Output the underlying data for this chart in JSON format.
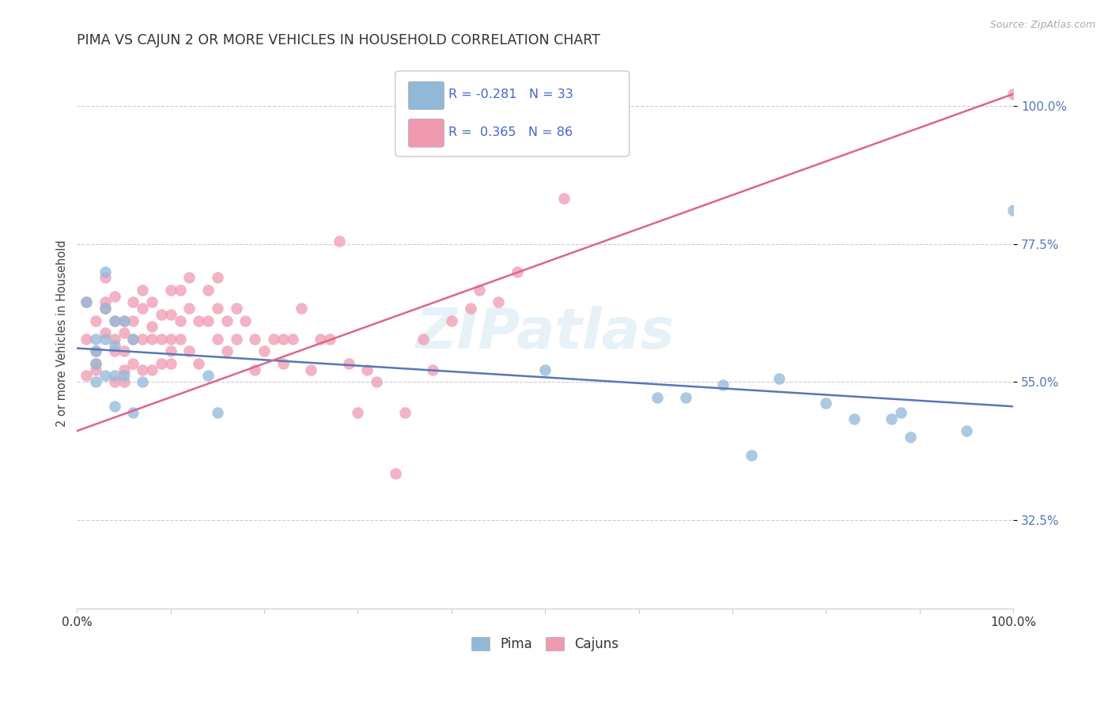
{
  "title": "PIMA VS CAJUN 2 OR MORE VEHICLES IN HOUSEHOLD CORRELATION CHART",
  "source": "Source: ZipAtlas.com",
  "ylabel": "2 or more Vehicles in Household",
  "ytick_labels": [
    "32.5%",
    "55.0%",
    "77.5%",
    "100.0%"
  ],
  "ytick_values": [
    0.325,
    0.55,
    0.775,
    1.0
  ],
  "xlim": [
    0.0,
    1.0
  ],
  "ylim": [
    0.18,
    1.08
  ],
  "pima_color": "#92b8d8",
  "cajun_color": "#f09ab0",
  "pima_line_color": "#5577bb",
  "cajun_line_color": "#dd6688",
  "ytick_color": "#5577bb",
  "watermark": "ZIPatlas",
  "pima_R": -0.281,
  "pima_N": 33,
  "cajun_R": 0.365,
  "cajun_N": 86,
  "grid_color": "#cccccc",
  "background_color": "#ffffff",
  "pima_scatter_x": [
    0.01,
    0.02,
    0.02,
    0.02,
    0.02,
    0.03,
    0.03,
    0.03,
    0.03,
    0.04,
    0.04,
    0.04,
    0.04,
    0.05,
    0.05,
    0.06,
    0.06,
    0.07,
    0.14,
    0.15,
    0.5,
    0.62,
    0.65,
    0.69,
    0.72,
    0.75,
    0.8,
    0.83,
    0.87,
    0.88,
    0.89,
    0.95,
    1.0
  ],
  "pima_scatter_y": [
    0.68,
    0.62,
    0.6,
    0.58,
    0.55,
    0.73,
    0.67,
    0.62,
    0.56,
    0.65,
    0.61,
    0.56,
    0.51,
    0.65,
    0.56,
    0.62,
    0.5,
    0.55,
    0.56,
    0.5,
    0.57,
    0.525,
    0.525,
    0.545,
    0.43,
    0.555,
    0.515,
    0.49,
    0.49,
    0.5,
    0.46,
    0.47,
    0.83
  ],
  "cajun_scatter_x": [
    0.01,
    0.01,
    0.01,
    0.02,
    0.02,
    0.02,
    0.02,
    0.03,
    0.03,
    0.03,
    0.03,
    0.04,
    0.04,
    0.04,
    0.04,
    0.04,
    0.05,
    0.05,
    0.05,
    0.05,
    0.05,
    0.06,
    0.06,
    0.06,
    0.06,
    0.07,
    0.07,
    0.07,
    0.07,
    0.08,
    0.08,
    0.08,
    0.08,
    0.09,
    0.09,
    0.09,
    0.1,
    0.1,
    0.1,
    0.1,
    0.1,
    0.11,
    0.11,
    0.11,
    0.12,
    0.12,
    0.12,
    0.13,
    0.13,
    0.14,
    0.14,
    0.15,
    0.15,
    0.15,
    0.16,
    0.16,
    0.17,
    0.17,
    0.18,
    0.19,
    0.19,
    0.2,
    0.21,
    0.22,
    0.22,
    0.23,
    0.24,
    0.25,
    0.26,
    0.27,
    0.28,
    0.29,
    0.3,
    0.31,
    0.32,
    0.34,
    0.35,
    0.37,
    0.38,
    0.4,
    0.42,
    0.43,
    0.45,
    0.47,
    0.52,
    1.0
  ],
  "cajun_scatter_y": [
    0.62,
    0.68,
    0.56,
    0.58,
    0.65,
    0.6,
    0.57,
    0.63,
    0.68,
    0.72,
    0.67,
    0.6,
    0.65,
    0.69,
    0.62,
    0.55,
    0.65,
    0.6,
    0.63,
    0.57,
    0.55,
    0.62,
    0.65,
    0.68,
    0.58,
    0.62,
    0.67,
    0.7,
    0.57,
    0.64,
    0.68,
    0.57,
    0.62,
    0.58,
    0.62,
    0.66,
    0.58,
    0.62,
    0.66,
    0.7,
    0.6,
    0.65,
    0.7,
    0.62,
    0.67,
    0.72,
    0.6,
    0.65,
    0.58,
    0.65,
    0.7,
    0.62,
    0.67,
    0.72,
    0.6,
    0.65,
    0.62,
    0.67,
    0.65,
    0.57,
    0.62,
    0.6,
    0.62,
    0.58,
    0.62,
    0.62,
    0.67,
    0.57,
    0.62,
    0.62,
    0.78,
    0.58,
    0.5,
    0.57,
    0.55,
    0.4,
    0.5,
    0.62,
    0.57,
    0.65,
    0.67,
    0.7,
    0.68,
    0.73,
    0.85,
    1.02
  ]
}
